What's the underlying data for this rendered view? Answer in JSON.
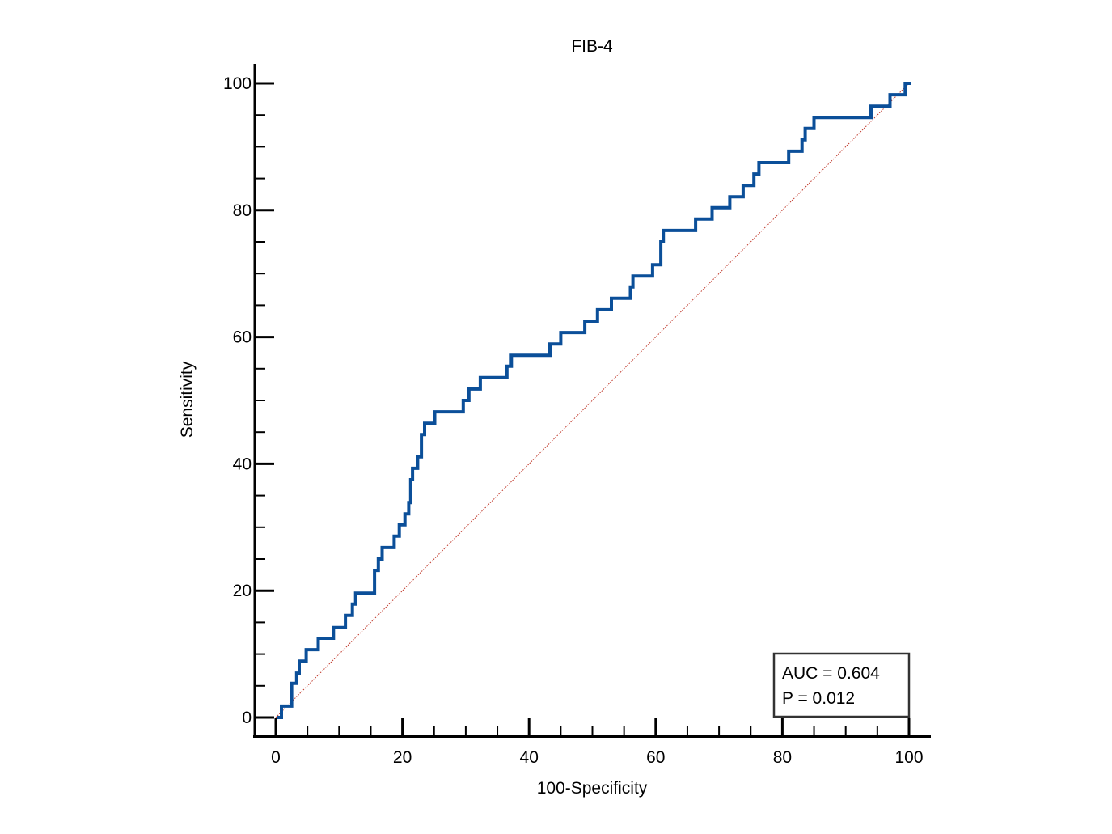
{
  "chart_data": {
    "type": "line",
    "title": "FIB-4",
    "xlabel": "100-Specificity",
    "ylabel": "Sensitivity",
    "xlim": [
      0,
      100
    ],
    "ylim": [
      0,
      100
    ],
    "x_ticks": [
      0,
      20,
      40,
      60,
      80,
      100
    ],
    "y_ticks": [
      0,
      20,
      40,
      60,
      80,
      100
    ],
    "x_minor_step": 5,
    "y_minor_step": 5,
    "grid": false,
    "legend": "none",
    "annotations": {
      "auc": "AUC = 0.604",
      "p": "P = 0.012",
      "placement": "bottom-right"
    },
    "reference_line": {
      "from": [
        0,
        0
      ],
      "to": [
        100,
        100
      ],
      "color": "#c0392b",
      "style": "dotted"
    },
    "series": [
      {
        "color": "#0b4f99",
        "points": [
          [
            0.5,
            0
          ],
          [
            0.9,
            0
          ],
          [
            0.9,
            1.8
          ],
          [
            2.5,
            1.8
          ],
          [
            2.5,
            5.4
          ],
          [
            3.3,
            5.4
          ],
          [
            3.3,
            7.0
          ],
          [
            3.7,
            7.0
          ],
          [
            3.7,
            8.9
          ],
          [
            4.8,
            8.9
          ],
          [
            4.8,
            10.7
          ],
          [
            6.7,
            10.7
          ],
          [
            6.7,
            12.5
          ],
          [
            9.1,
            12.5
          ],
          [
            9.1,
            14.2
          ],
          [
            11.0,
            14.2
          ],
          [
            11.0,
            16.1
          ],
          [
            12.1,
            16.1
          ],
          [
            12.1,
            17.9
          ],
          [
            12.6,
            17.9
          ],
          [
            12.6,
            19.6
          ],
          [
            15.6,
            19.6
          ],
          [
            15.6,
            23.2
          ],
          [
            16.2,
            23.2
          ],
          [
            16.2,
            25.0
          ],
          [
            16.8,
            25.0
          ],
          [
            16.8,
            26.8
          ],
          [
            18.7,
            26.8
          ],
          [
            18.7,
            28.6
          ],
          [
            19.5,
            28.6
          ],
          [
            19.5,
            30.4
          ],
          [
            20.4,
            30.4
          ],
          [
            20.4,
            32.1
          ],
          [
            21.0,
            32.1
          ],
          [
            21.0,
            33.9
          ],
          [
            21.3,
            33.9
          ],
          [
            21.3,
            37.5
          ],
          [
            21.6,
            37.5
          ],
          [
            21.6,
            39.3
          ],
          [
            22.4,
            39.3
          ],
          [
            22.4,
            41.1
          ],
          [
            23.0,
            41.1
          ],
          [
            23.0,
            44.6
          ],
          [
            23.5,
            44.6
          ],
          [
            23.5,
            46.4
          ],
          [
            25.1,
            46.4
          ],
          [
            25.1,
            48.2
          ],
          [
            29.6,
            48.2
          ],
          [
            29.6,
            50.0
          ],
          [
            30.5,
            50.0
          ],
          [
            30.5,
            51.8
          ],
          [
            32.3,
            51.8
          ],
          [
            32.3,
            53.6
          ],
          [
            36.5,
            53.6
          ],
          [
            36.5,
            55.4
          ],
          [
            37.2,
            55.4
          ],
          [
            37.2,
            57.1
          ],
          [
            43.3,
            57.1
          ],
          [
            43.3,
            58.9
          ],
          [
            45.0,
            58.9
          ],
          [
            45.0,
            60.7
          ],
          [
            48.8,
            60.7
          ],
          [
            48.8,
            62.5
          ],
          [
            50.8,
            62.5
          ],
          [
            50.8,
            64.3
          ],
          [
            53.0,
            64.3
          ],
          [
            53.0,
            66.1
          ],
          [
            56.0,
            66.1
          ],
          [
            56.0,
            67.9
          ],
          [
            56.4,
            67.9
          ],
          [
            56.4,
            69.6
          ],
          [
            59.5,
            69.6
          ],
          [
            59.5,
            71.4
          ],
          [
            60.8,
            71.4
          ],
          [
            60.8,
            75.0
          ],
          [
            61.2,
            75.0
          ],
          [
            61.2,
            76.8
          ],
          [
            66.3,
            76.8
          ],
          [
            66.3,
            78.6
          ],
          [
            68.9,
            78.6
          ],
          [
            68.9,
            80.4
          ],
          [
            71.7,
            80.4
          ],
          [
            71.7,
            82.1
          ],
          [
            73.8,
            82.1
          ],
          [
            73.8,
            83.9
          ],
          [
            75.5,
            83.9
          ],
          [
            75.5,
            85.7
          ],
          [
            76.3,
            85.7
          ],
          [
            76.3,
            87.5
          ],
          [
            81.0,
            87.5
          ],
          [
            81.0,
            89.3
          ],
          [
            83.1,
            89.3
          ],
          [
            83.1,
            91.1
          ],
          [
            83.6,
            91.1
          ],
          [
            83.6,
            92.9
          ],
          [
            85.0,
            92.9
          ],
          [
            85.0,
            94.6
          ],
          [
            94.0,
            94.6
          ],
          [
            94.0,
            96.4
          ],
          [
            97.0,
            96.4
          ],
          [
            97.0,
            98.2
          ],
          [
            99.4,
            98.2
          ],
          [
            99.4,
            100
          ],
          [
            100,
            100
          ]
        ]
      }
    ]
  }
}
